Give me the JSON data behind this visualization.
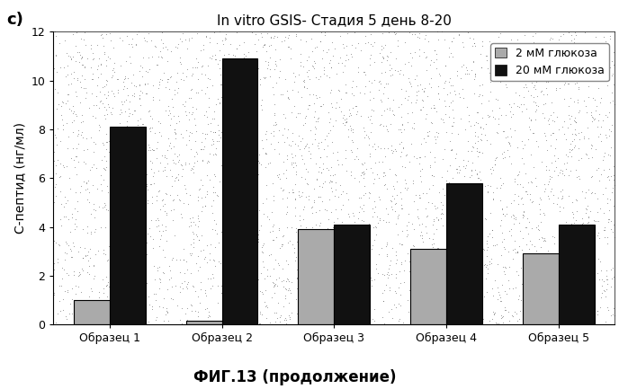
{
  "title": "In vitro GSIS- Стадия 5 день 8-20",
  "xlabel": "ФИГ.13 (продолжение)",
  "ylabel": "С-пептид (нг/мл)",
  "panel_label": "c)",
  "categories": [
    "Образец 1",
    "Образец 2",
    "Образец 3",
    "Образец 4",
    "Образец 5"
  ],
  "values_2mM": [
    1.0,
    0.15,
    3.9,
    3.1,
    2.9
  ],
  "values_20mM": [
    8.1,
    10.9,
    4.1,
    5.8,
    4.1
  ],
  "color_2mM": "#aaaaaa",
  "color_20mM": "#111111",
  "legend_2mM": "2 мМ глюкоза",
  "legend_20mM": "20 мМ глюкоза",
  "ylim": [
    0,
    12
  ],
  "yticks": [
    0,
    2,
    4,
    6,
    8,
    10,
    12
  ],
  "bar_width": 0.32,
  "fig_bg_color": "#ffffff",
  "plot_bg_color": "#ffffff",
  "title_fontsize": 11,
  "axis_label_fontsize": 10,
  "tick_fontsize": 9,
  "legend_fontsize": 9,
  "noise_count": 4000,
  "noise_color": "#666666",
  "noise_size": 0.4,
  "noise_alpha": 0.6
}
